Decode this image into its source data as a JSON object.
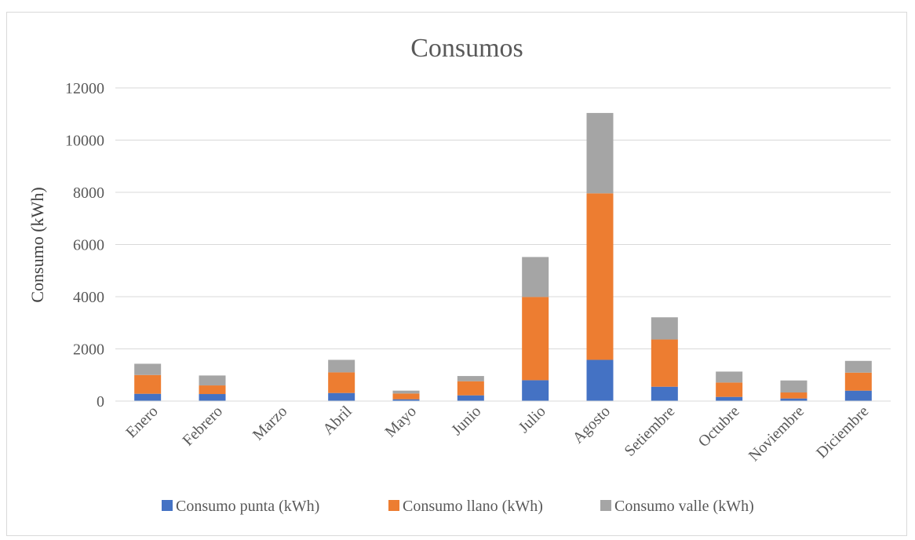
{
  "chart_data": {
    "type": "bar",
    "stacked": true,
    "title": "Consumos",
    "xlabel": "",
    "ylabel": "Consumo (kWh)",
    "ylim": [
      0,
      12000
    ],
    "yticks": [
      0,
      2000,
      4000,
      6000,
      8000,
      10000,
      12000
    ],
    "grid": true,
    "legend_position": "bottom",
    "categories": [
      "Enero",
      "Febrero",
      "Marzo",
      "Abril",
      "Mayo",
      "Junio",
      "Julio",
      "Agosto",
      "Setiembre",
      "Octubre",
      "Noviembre",
      "Diciembre"
    ],
    "series": [
      {
        "name": "Consumo punta (kWh)",
        "color": "#4472C4",
        "values": [
          280,
          270,
          0,
          310,
          70,
          220,
          800,
          1580,
          550,
          160,
          100,
          400
        ]
      },
      {
        "name": "Consumo llano (kWh)",
        "color": "#ED7D31",
        "values": [
          720,
          330,
          0,
          790,
          220,
          540,
          3190,
          6380,
          1810,
          550,
          230,
          690
        ]
      },
      {
        "name": "Consumo valle (kWh)",
        "color": "#A5A5A5",
        "values": [
          430,
          380,
          0,
          480,
          110,
          200,
          1530,
          3080,
          850,
          420,
          460,
          450
        ]
      }
    ]
  }
}
